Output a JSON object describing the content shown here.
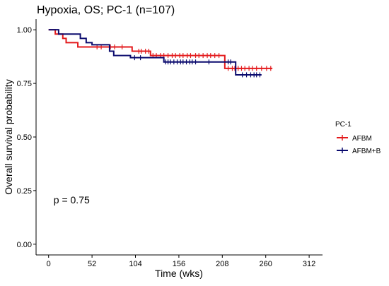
{
  "chart_data": {
    "type": "line",
    "subtype": "kaplan-meier",
    "title": "Hypoxia,  OS; PC-1 (n=107)",
    "xlabel": "Time (wks)",
    "ylabel": "Overall survival probability",
    "xlim": [
      -15,
      328
    ],
    "ylim": [
      -0.05,
      1.05
    ],
    "x_ticks": [
      0,
      52,
      104,
      156,
      208,
      260,
      312
    ],
    "y_ticks": [
      0.0,
      0.25,
      0.5,
      0.75,
      1.0
    ],
    "y_tick_labels": [
      "0.00",
      "0.25",
      "0.50",
      "0.75",
      "1.00"
    ],
    "grid": false,
    "legend": {
      "title": "PC-1",
      "position": "right"
    },
    "annotation": "p = 0.75",
    "annotation_at": {
      "x": 6,
      "y": 0.19
    },
    "series": [
      {
        "name": "AFBM",
        "color": "#e31a1c",
        "steps": [
          {
            "x": 0,
            "y": 1.0
          },
          {
            "x": 8,
            "y": 0.98
          },
          {
            "x": 17,
            "y": 0.96
          },
          {
            "x": 21,
            "y": 0.94
          },
          {
            "x": 35,
            "y": 0.92
          },
          {
            "x": 73,
            "y": 0.92
          },
          {
            "x": 100,
            "y": 0.9
          },
          {
            "x": 122,
            "y": 0.88
          },
          {
            "x": 211,
            "y": 0.82
          }
        ],
        "end_x": 268,
        "censor_x": [
          58,
          63,
          74,
          79,
          88,
          108,
          111,
          116,
          120,
          125,
          129,
          134,
          138,
          143,
          148,
          152,
          157,
          161,
          166,
          170,
          176,
          180,
          185,
          190,
          194,
          199,
          204,
          215,
          220,
          223,
          227,
          231,
          235,
          240,
          244,
          249,
          255,
          261,
          266
        ]
      },
      {
        "name": "AFBM+B",
        "color": "#0b0b6e",
        "steps": [
          {
            "x": 0,
            "y": 1.0
          },
          {
            "x": 12,
            "y": 0.98
          },
          {
            "x": 38,
            "y": 0.96
          },
          {
            "x": 45,
            "y": 0.94
          },
          {
            "x": 52,
            "y": 0.93
          },
          {
            "x": 73,
            "y": 0.9
          },
          {
            "x": 78,
            "y": 0.88
          },
          {
            "x": 98,
            "y": 0.87
          },
          {
            "x": 138,
            "y": 0.85
          },
          {
            "x": 224,
            "y": 0.79
          }
        ],
        "end_x": 255,
        "censor_x": [
          103,
          110,
          140,
          143,
          146,
          150,
          154,
          158,
          161,
          165,
          169,
          172,
          176,
          192,
          215,
          218,
          232,
          237,
          242,
          246,
          249,
          253
        ]
      }
    ]
  }
}
